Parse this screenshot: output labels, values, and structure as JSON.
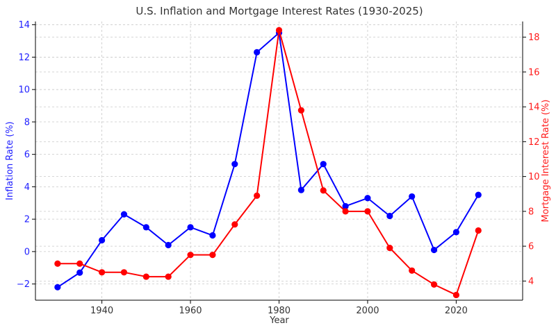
{
  "chart_data": {
    "type": "line",
    "title": "U.S. Inflation and Mortgage Interest Rates (1930-2025)",
    "xlabel": "Year",
    "ylabel_left": "Inflation Rate (%)",
    "ylabel_right": "Mortgage Interest Rate (%)",
    "xlim": [
      1925,
      2035
    ],
    "ylim_left": [
      -3,
      14.2
    ],
    "ylim_right": [
      2.9,
      18.9
    ],
    "xticks": [
      1940,
      1960,
      1980,
      2000,
      2020
    ],
    "yticks_left": [
      -2,
      0,
      2,
      4,
      6,
      8,
      10,
      12,
      14
    ],
    "yticks_right": [
      4,
      6,
      8,
      10,
      12,
      14,
      16,
      18
    ],
    "grid": true,
    "series": [
      {
        "axis": "left",
        "color": "#0000ff",
        "x": [
          1930,
          1935,
          1940,
          1945,
          1950,
          1955,
          1960,
          1965,
          1970,
          1975,
          1980,
          1985,
          1990,
          1995,
          2000,
          2005,
          2010,
          2015,
          2020,
          2025
        ],
        "values": [
          -2.2,
          -1.3,
          0.7,
          2.3,
          1.5,
          0.4,
          1.5,
          1.0,
          5.4,
          12.3,
          13.5,
          3.8,
          5.4,
          2.8,
          3.3,
          2.2,
          3.4,
          0.1,
          1.2,
          3.5
        ]
      },
      {
        "axis": "right",
        "color": "#ff0000",
        "x": [
          1930,
          1935,
          1940,
          1945,
          1950,
          1955,
          1960,
          1965,
          1970,
          1975,
          1980,
          1985,
          1990,
          1995,
          2000,
          2005,
          2010,
          2015,
          2020,
          2025
        ],
        "values": [
          5.0,
          5.0,
          4.5,
          4.5,
          4.25,
          4.25,
          5.5,
          5.5,
          7.25,
          8.9,
          18.4,
          13.8,
          9.2,
          8.0,
          8.0,
          5.9,
          4.6,
          3.8,
          3.2,
          6.9
        ]
      }
    ]
  }
}
